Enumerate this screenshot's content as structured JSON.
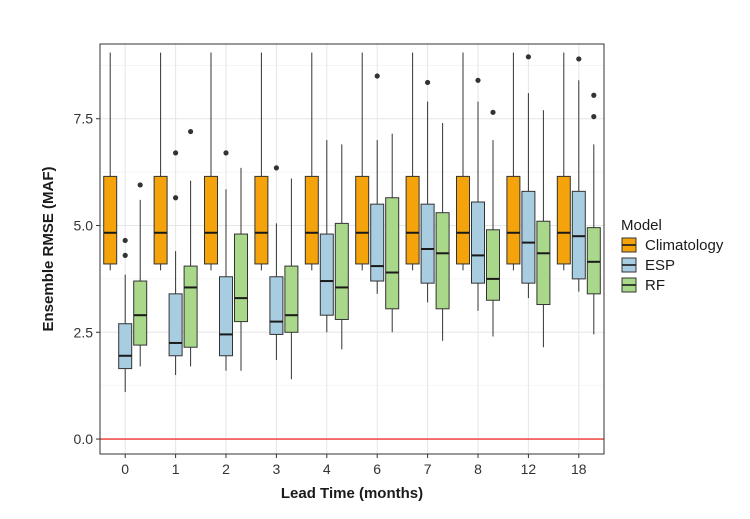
{
  "chart_data": {
    "type": "boxplot",
    "xlabel": "Lead Time (months)",
    "ylabel": "Ensemble RMSE (MAF)",
    "categories": [
      "0",
      "1",
      "2",
      "3",
      "4",
      "6",
      "7",
      "8",
      "12",
      "18"
    ],
    "ylim": [
      -0.35,
      9.25
    ],
    "yticks": [
      0.0,
      2.5,
      5.0,
      7.5
    ],
    "ytick_labels": [
      "0.0",
      "2.5",
      "5.0",
      "7.5"
    ],
    "reference_line": {
      "y": 0.0,
      "color": "#f05050"
    },
    "grid": true,
    "legend": {
      "title": "Model",
      "position": "right"
    },
    "series": [
      {
        "name": "Climatology",
        "color": "#f5a30a",
        "boxes": [
          {
            "whisker_low": 3.95,
            "q1": 4.1,
            "median": 4.83,
            "q3": 6.15,
            "whisker_high": 9.05,
            "outliers": []
          },
          {
            "whisker_low": 3.95,
            "q1": 4.1,
            "median": 4.83,
            "q3": 6.15,
            "whisker_high": 9.05,
            "outliers": []
          },
          {
            "whisker_low": 3.95,
            "q1": 4.1,
            "median": 4.83,
            "q3": 6.15,
            "whisker_high": 9.05,
            "outliers": []
          },
          {
            "whisker_low": 3.95,
            "q1": 4.1,
            "median": 4.83,
            "q3": 6.15,
            "whisker_high": 9.05,
            "outliers": []
          },
          {
            "whisker_low": 3.95,
            "q1": 4.1,
            "median": 4.83,
            "q3": 6.15,
            "whisker_high": 9.05,
            "outliers": []
          },
          {
            "whisker_low": 3.95,
            "q1": 4.1,
            "median": 4.83,
            "q3": 6.15,
            "whisker_high": 9.05,
            "outliers": []
          },
          {
            "whisker_low": 3.95,
            "q1": 4.1,
            "median": 4.83,
            "q3": 6.15,
            "whisker_high": 9.05,
            "outliers": []
          },
          {
            "whisker_low": 3.95,
            "q1": 4.1,
            "median": 4.83,
            "q3": 6.15,
            "whisker_high": 9.05,
            "outliers": []
          },
          {
            "whisker_low": 3.95,
            "q1": 4.1,
            "median": 4.83,
            "q3": 6.15,
            "whisker_high": 9.05,
            "outliers": []
          },
          {
            "whisker_low": 3.95,
            "q1": 4.1,
            "median": 4.83,
            "q3": 6.15,
            "whisker_high": 9.05,
            "outliers": []
          }
        ]
      },
      {
        "name": "ESP",
        "color": "#a8cce0",
        "boxes": [
          {
            "whisker_low": 1.1,
            "q1": 1.65,
            "median": 1.95,
            "q3": 2.7,
            "whisker_high": 3.85,
            "outliers": [
              4.3,
              4.65
            ]
          },
          {
            "whisker_low": 1.5,
            "q1": 1.95,
            "median": 2.25,
            "q3": 3.4,
            "whisker_high": 4.4,
            "outliers": [
              5.65,
              6.7
            ]
          },
          {
            "whisker_low": 1.6,
            "q1": 1.95,
            "median": 2.45,
            "q3": 3.8,
            "whisker_high": 5.85,
            "outliers": [
              6.7
            ]
          },
          {
            "whisker_low": 1.85,
            "q1": 2.45,
            "median": 2.75,
            "q3": 3.8,
            "whisker_high": 5.05,
            "outliers": [
              6.35
            ]
          },
          {
            "whisker_low": 2.5,
            "q1": 2.9,
            "median": 3.7,
            "q3": 4.8,
            "whisker_high": 7.0,
            "outliers": []
          },
          {
            "whisker_low": 3.4,
            "q1": 3.7,
            "median": 4.05,
            "q3": 5.5,
            "whisker_high": 7.0,
            "outliers": [
              8.5
            ]
          },
          {
            "whisker_low": 3.2,
            "q1": 3.65,
            "median": 4.45,
            "q3": 5.5,
            "whisker_high": 7.9,
            "outliers": [
              8.35
            ]
          },
          {
            "whisker_low": 3.0,
            "q1": 3.65,
            "median": 4.3,
            "q3": 5.55,
            "whisker_high": 7.9,
            "outliers": [
              8.4
            ]
          },
          {
            "whisker_low": 3.3,
            "q1": 3.65,
            "median": 4.6,
            "q3": 5.8,
            "whisker_high": 8.1,
            "outliers": [
              8.95
            ]
          },
          {
            "whisker_low": 3.45,
            "q1": 3.75,
            "median": 4.75,
            "q3": 5.8,
            "whisker_high": 8.4,
            "outliers": [
              8.9
            ]
          }
        ]
      },
      {
        "name": "RF",
        "color": "#a9d88a",
        "boxes": [
          {
            "whisker_low": 1.7,
            "q1": 2.2,
            "median": 2.9,
            "q3": 3.7,
            "whisker_high": 5.6,
            "outliers": [
              5.95
            ]
          },
          {
            "whisker_low": 1.7,
            "q1": 2.15,
            "median": 3.55,
            "q3": 4.05,
            "whisker_high": 6.05,
            "outliers": [
              7.2
            ]
          },
          {
            "whisker_low": 1.6,
            "q1": 2.75,
            "median": 3.3,
            "q3": 4.8,
            "whisker_high": 6.35,
            "outliers": []
          },
          {
            "whisker_low": 1.4,
            "q1": 2.5,
            "median": 2.9,
            "q3": 4.05,
            "whisker_high": 6.1,
            "outliers": []
          },
          {
            "whisker_low": 2.1,
            "q1": 2.8,
            "median": 3.55,
            "q3": 5.05,
            "whisker_high": 6.9,
            "outliers": []
          },
          {
            "whisker_low": 2.5,
            "q1": 3.05,
            "median": 3.9,
            "q3": 5.65,
            "whisker_high": 7.15,
            "outliers": []
          },
          {
            "whisker_low": 2.3,
            "q1": 3.05,
            "median": 4.35,
            "q3": 5.3,
            "whisker_high": 7.4,
            "outliers": []
          },
          {
            "whisker_low": 2.4,
            "q1": 3.25,
            "median": 3.75,
            "q3": 4.9,
            "whisker_high": 7.0,
            "outliers": [
              7.65
            ]
          },
          {
            "whisker_low": 2.15,
            "q1": 3.15,
            "median": 4.35,
            "q3": 5.1,
            "whisker_high": 7.7,
            "outliers": []
          },
          {
            "whisker_low": 2.45,
            "q1": 3.4,
            "median": 4.15,
            "q3": 4.95,
            "whisker_high": 6.9,
            "outliers": [
              7.55,
              8.05
            ]
          }
        ]
      }
    ]
  }
}
